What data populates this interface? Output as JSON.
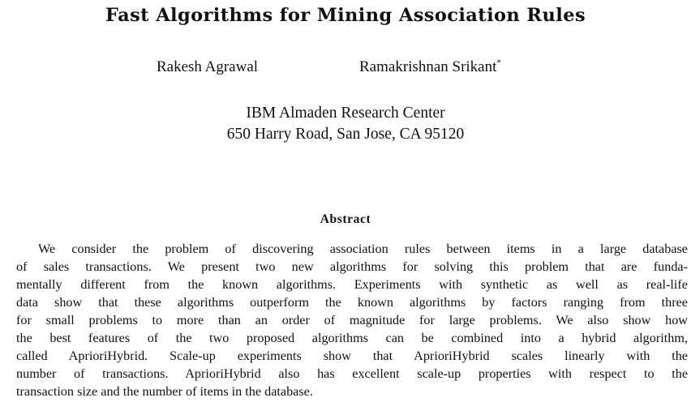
{
  "paper": {
    "title": "Fast Algorithms for Mining Association Rules",
    "authors": [
      {
        "name": "Rakesh Agrawal",
        "mark": ""
      },
      {
        "name": "Ramakrishnan Srikant",
        "mark": "*"
      }
    ],
    "affiliation": {
      "institution": "IBM Almaden Research Center",
      "address": "650 Harry Road, San Jose, CA 95120"
    },
    "abstract": {
      "heading": "Abstract",
      "lines": [
        "We consider the problem of discovering association rules between items in a large database",
        "of sales transactions. We present two new algorithms for solving this problem that are funda-",
        "mentally different from the known algorithms. Experiments with synthetic as well as real-life",
        "data show that these algorithms outperform the known algorithms by factors ranging from three",
        "for small problems to more than an order of magnitude for large problems. We also show how",
        "the best features of the two proposed algorithms can be combined into a hybrid algorithm,",
        "called AprioriHybrid. Scale-up experiments show that AprioriHybrid scales linearly with the",
        "number of transactions. AprioriHybrid also has excellent scale-up properties with respect to the",
        "transaction size and the number of items in the database."
      ]
    }
  }
}
